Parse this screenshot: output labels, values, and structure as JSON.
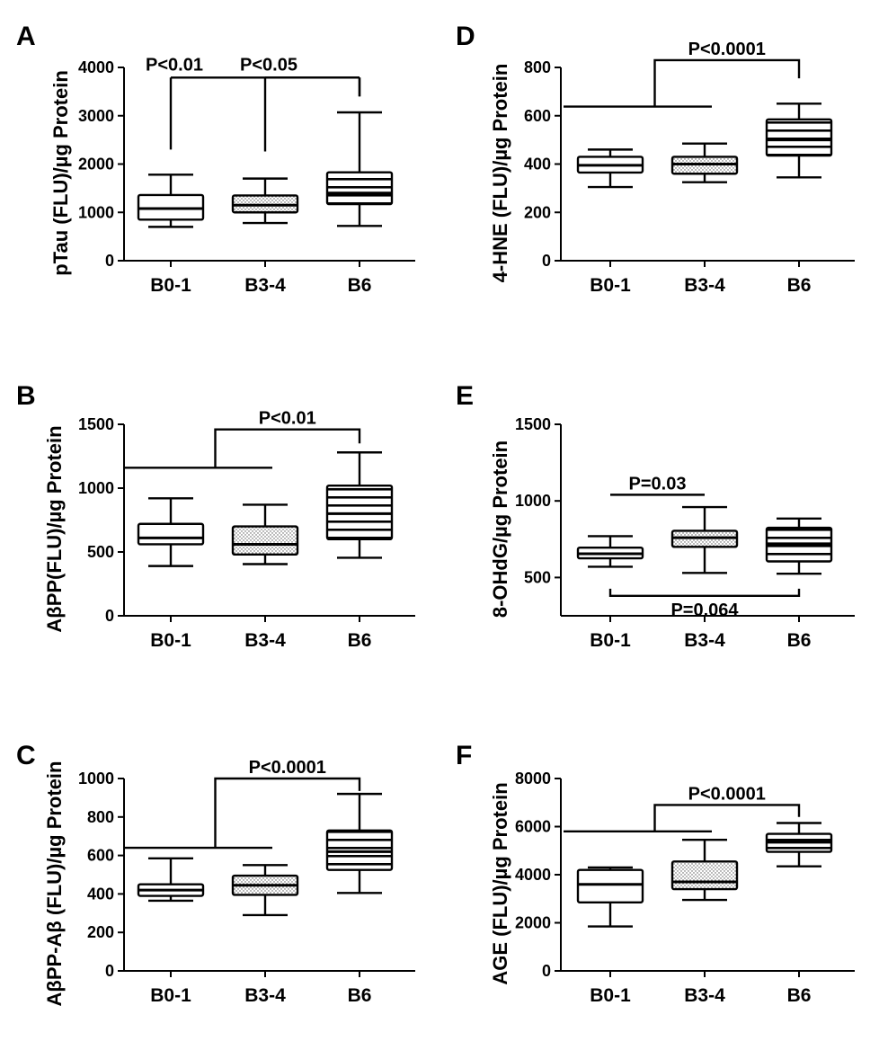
{
  "chart_data": [
    {
      "type": "box",
      "panel": "A",
      "title": "",
      "xlabel": "",
      "ylabel": "pTau (FLU)/µg Protein",
      "categories": [
        "B0-1",
        "B3-4",
        "B6"
      ],
      "ylim": [
        0,
        4000
      ],
      "yticks": [
        0,
        1000,
        2000,
        3000,
        4000
      ],
      "tick_labels": [
        "0",
        "1000",
        "2000",
        "3000",
        "4000"
      ],
      "boxes": [
        {
          "min": 700,
          "q1": 850,
          "median": 1080,
          "q3": 1360,
          "max": 1780,
          "fill": "white"
        },
        {
          "min": 780,
          "q1": 1000,
          "median": 1150,
          "q3": 1350,
          "max": 1700,
          "fill": "dots"
        },
        {
          "min": 720,
          "q1": 1170,
          "median": 1400,
          "q3": 1830,
          "max": 3070,
          "fill": "lines"
        }
      ],
      "annotations": [
        {
          "text": "P<0.01",
          "from": 0,
          "to": 2,
          "level": 3790,
          "drop_from": 2300,
          "drop_to": 3400
        },
        {
          "text": "P<0.05",
          "from": 1,
          "to": 2,
          "level": 3790,
          "drop_from": 2260,
          "drop_to": 3400
        }
      ]
    },
    {
      "type": "box",
      "panel": "D",
      "title": "",
      "xlabel": "",
      "ylabel": "4-HNE (FLU)/µg Protein",
      "categories": [
        "B0-1",
        "B3-4",
        "B6"
      ],
      "ylim": [
        0,
        800
      ],
      "yticks": [
        0,
        200,
        400,
        600,
        800
      ],
      "tick_labels": [
        "0",
        "200",
        "400",
        "600",
        "800"
      ],
      "boxes": [
        {
          "min": 305,
          "q1": 365,
          "median": 395,
          "q3": 430,
          "max": 460,
          "fill": "white"
        },
        {
          "min": 325,
          "q1": 360,
          "median": 400,
          "q3": 430,
          "max": 485,
          "fill": "dots"
        },
        {
          "min": 345,
          "q1": 435,
          "median": 500,
          "q3": 585,
          "max": 650,
          "fill": "lines"
        }
      ],
      "annotations": [
        {
          "text": "P<0.0001",
          "group_from": 0,
          "group_to": 1,
          "to": 2,
          "group_level": 638,
          "level": 830,
          "drop_to": 755
        }
      ]
    },
    {
      "type": "box",
      "panel": "B",
      "title": "",
      "xlabel": "",
      "ylabel": "AβPP(FLU)/µg Protein",
      "categories": [
        "B0-1",
        "B3-4",
        "B6"
      ],
      "ylim": [
        0,
        1500
      ],
      "yticks": [
        0,
        500,
        1000,
        1500
      ],
      "tick_labels": [
        "0",
        "500",
        "1000",
        "1500"
      ],
      "boxes": [
        {
          "min": 390,
          "q1": 560,
          "median": 610,
          "q3": 720,
          "max": 920,
          "fill": "white"
        },
        {
          "min": 405,
          "q1": 480,
          "median": 560,
          "q3": 700,
          "max": 870,
          "fill": "dots"
        },
        {
          "min": 455,
          "q1": 600,
          "median": 800,
          "q3": 1020,
          "max": 1280,
          "fill": "lines"
        }
      ],
      "annotations": [
        {
          "text": "P<0.01",
          "group_from": 0,
          "group_to": 1,
          "to": 2,
          "group_level": 1160,
          "level": 1460,
          "drop_to": 1350
        }
      ]
    },
    {
      "type": "box",
      "panel": "E",
      "title": "",
      "xlabel": "",
      "ylabel": "8-OHdG/µg Protein",
      "categories": [
        "B0-1",
        "B3-4",
        "B6"
      ],
      "ylim": [
        250,
        1500
      ],
      "yticks": [
        500,
        1000,
        1500
      ],
      "tick_labels": [
        "500",
        "1000",
        "1500"
      ],
      "boxes": [
        {
          "min": 570,
          "q1": 625,
          "median": 655,
          "q3": 695,
          "max": 770,
          "fill": "white"
        },
        {
          "min": 530,
          "q1": 700,
          "median": 760,
          "q3": 805,
          "max": 960,
          "fill": "dots"
        },
        {
          "min": 525,
          "q1": 605,
          "median": 720,
          "q3": 825,
          "max": 885,
          "fill": "lines"
        }
      ],
      "annotations": [
        {
          "text": "P=0.03",
          "from": 0,
          "to": 1,
          "level": 1040
        },
        {
          "text": "P=0.064",
          "from": 0,
          "to": 2,
          "level": 380,
          "below": true
        }
      ]
    },
    {
      "type": "box",
      "panel": "C",
      "title": "",
      "xlabel": "",
      "ylabel": "AβPP-Aβ (FLU)/µg Protein",
      "categories": [
        "B0-1",
        "B3-4",
        "B6"
      ],
      "ylim": [
        0,
        1000
      ],
      "yticks": [
        0,
        200,
        400,
        600,
        800,
        1000
      ],
      "tick_labels": [
        "0",
        "200",
        "400",
        "600",
        "800",
        "1000"
      ],
      "boxes": [
        {
          "min": 365,
          "q1": 390,
          "median": 420,
          "q3": 450,
          "max": 585,
          "fill": "white"
        },
        {
          "min": 290,
          "q1": 395,
          "median": 445,
          "q3": 495,
          "max": 550,
          "fill": "dots"
        },
        {
          "min": 405,
          "q1": 525,
          "median": 620,
          "q3": 730,
          "max": 920,
          "fill": "lines"
        }
      ],
      "annotations": [
        {
          "text": "P<0.0001",
          "group_from": 0,
          "group_to": 1,
          "to": 2,
          "group_level": 640,
          "level": 1000,
          "drop_to": 935
        }
      ]
    },
    {
      "type": "box",
      "panel": "F",
      "title": "",
      "xlabel": "",
      "ylabel": "AGE (FLU)/µg Protein",
      "categories": [
        "B0-1",
        "B3-4",
        "B6"
      ],
      "ylim": [
        0,
        8000
      ],
      "yticks": [
        0,
        2000,
        4000,
        6000,
        8000
      ],
      "tick_labels": [
        "0",
        "2000",
        "4000",
        "6000",
        "8000"
      ],
      "boxes": [
        {
          "min": 1850,
          "q1": 2850,
          "median": 3600,
          "q3": 4200,
          "max": 4300,
          "fill": "white"
        },
        {
          "min": 2950,
          "q1": 3400,
          "median": 3700,
          "q3": 4550,
          "max": 5450,
          "fill": "dots"
        },
        {
          "min": 4350,
          "q1": 4950,
          "median": 5350,
          "q3": 5700,
          "max": 6150,
          "fill": "lines"
        }
      ],
      "annotations": [
        {
          "text": "P<0.0001",
          "group_from": 0,
          "group_to": 1,
          "to": 2,
          "group_level": 5800,
          "level": 6900,
          "drop_to": 6400
        }
      ]
    }
  ]
}
